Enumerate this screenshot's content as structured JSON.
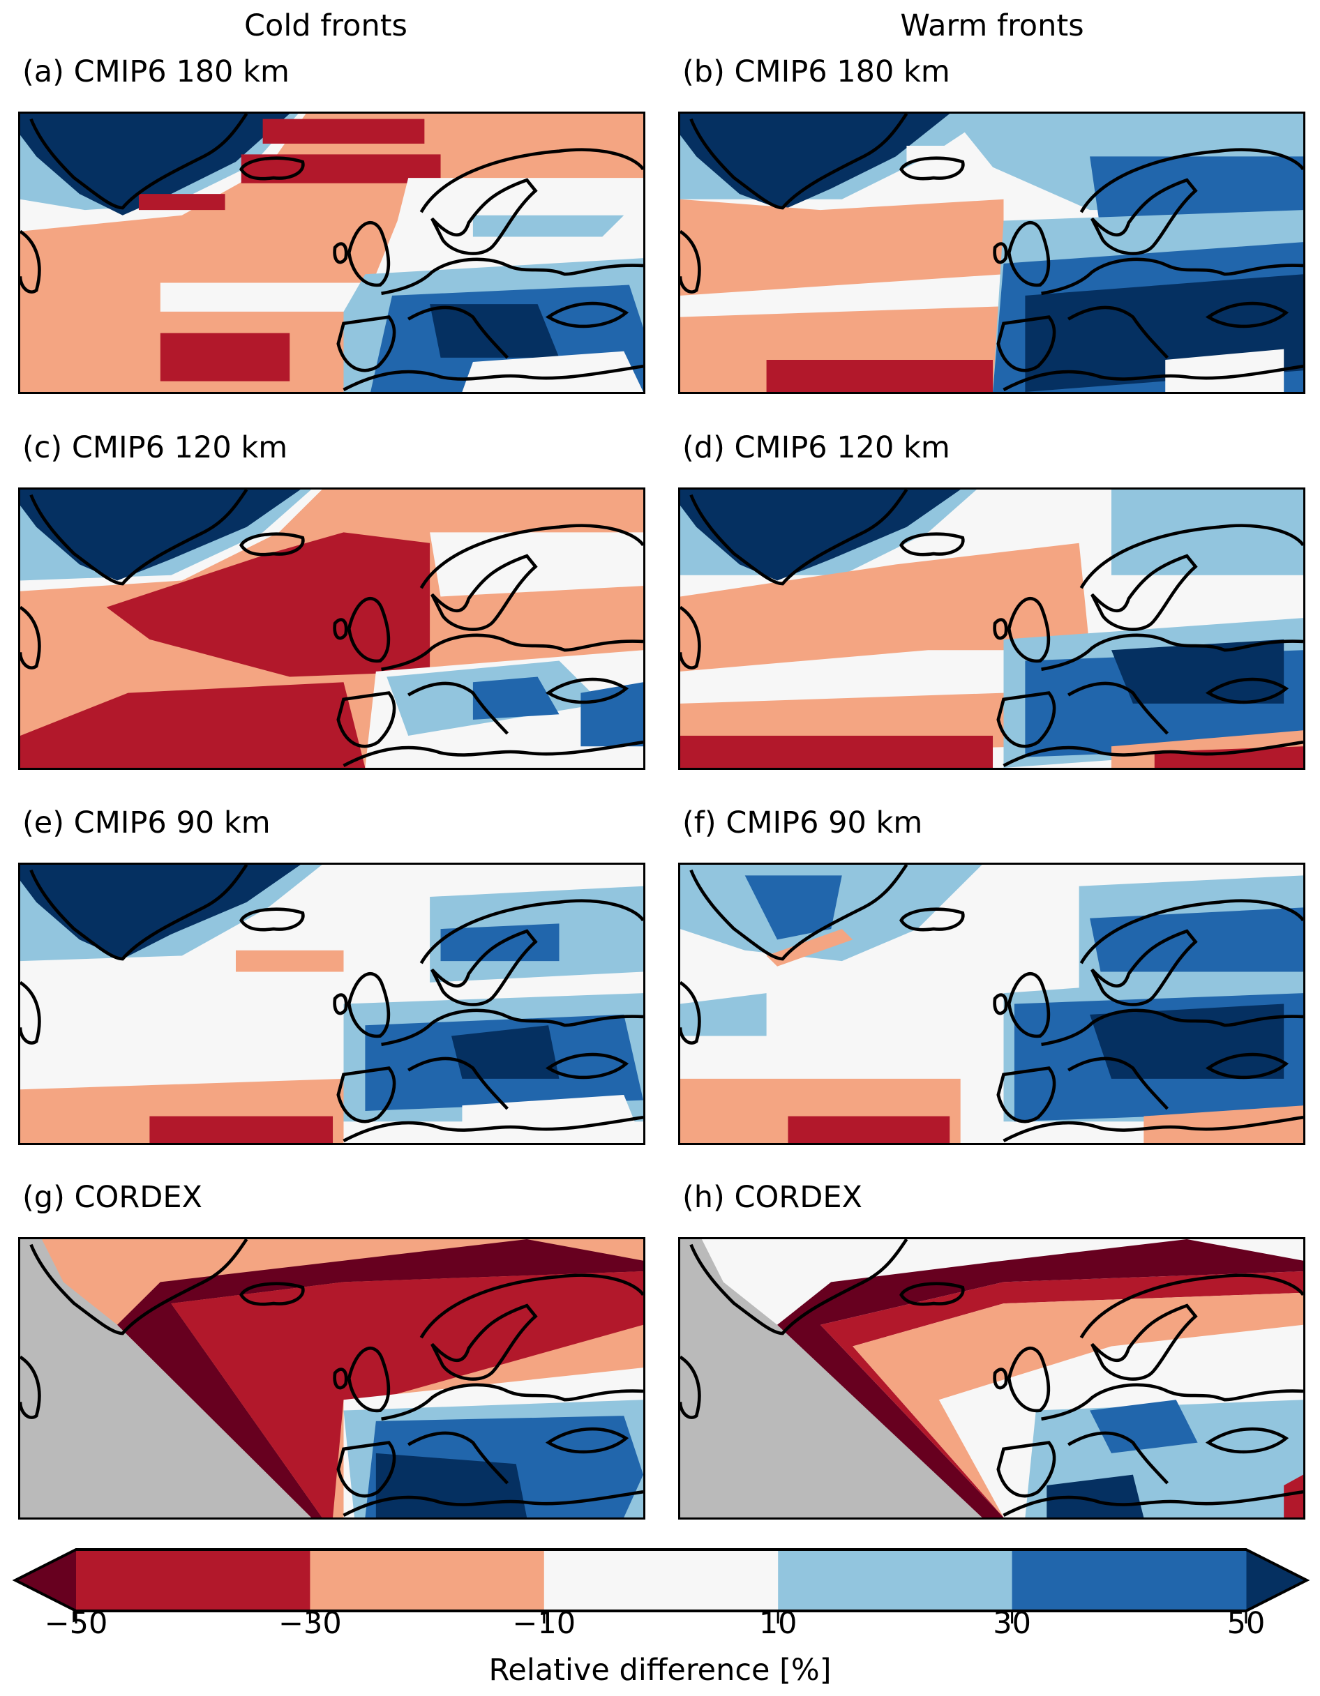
{
  "columns": [
    "Cold fronts",
    "Warm fronts"
  ],
  "panels": [
    {
      "label": "(a) CMIP6 180 km"
    },
    {
      "label": "(b) CMIP6 180 km"
    },
    {
      "label": "(c) CMIP6 120 km"
    },
    {
      "label": "(d) CMIP6 120 km"
    },
    {
      "label": "(e) CMIP6 90 km"
    },
    {
      "label": "(f) CMIP6 90 km"
    },
    {
      "label": "(g) CORDEX"
    },
    {
      "label": "(h) CORDEX"
    }
  ],
  "colorbar": {
    "label": "Relative difference [%]",
    "ticks": [
      "−50",
      "−30",
      "−10",
      "10",
      "30",
      "50"
    ],
    "levels": [
      -50,
      -30,
      -10,
      10,
      30,
      50
    ],
    "extend": "both",
    "colors": [
      "#b2182b",
      "#f4a582",
      "#f7f7f7",
      "#92c5de",
      "#2166ac"
    ],
    "under_color": "#67001f",
    "over_color": "#053061",
    "missing_color": "#bababa"
  }
}
